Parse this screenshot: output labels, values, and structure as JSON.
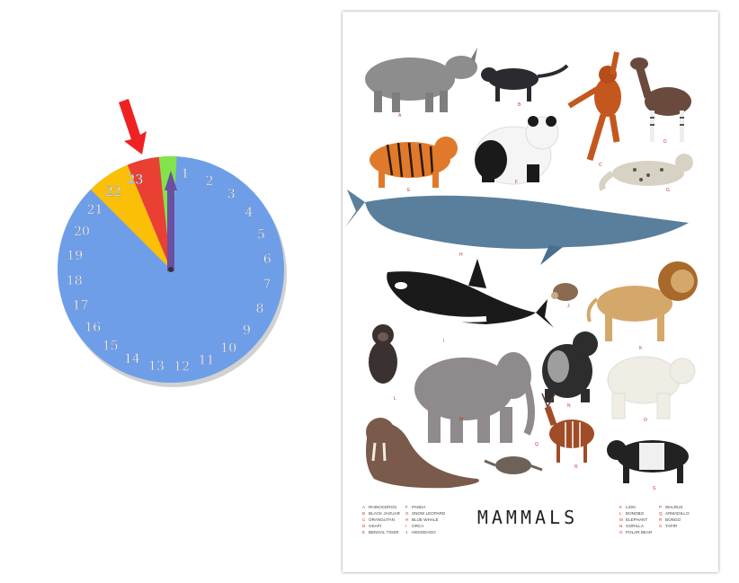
{
  "clock": {
    "hours": [
      "1",
      "2",
      "3",
      "4",
      "5",
      "6",
      "7",
      "8",
      "9",
      "10",
      "11",
      "12",
      "13",
      "14",
      "15",
      "16",
      "17",
      "18",
      "19",
      "20",
      "21",
      "22",
      "23"
    ],
    "colors": {
      "face": "#6e9ee8",
      "wedge_yellow": "#fbbf08",
      "wedge_red": "#ea4033",
      "wedge_green": "#83e34a",
      "hand": "#6b4fa3",
      "arrow": "#ee2222"
    },
    "arrow_icon": "red-arrow-icon"
  },
  "poster": {
    "title": "MAMMALS",
    "legend": [
      {
        "letter": "A",
        "name": "RHINOCEROS"
      },
      {
        "letter": "B",
        "name": "BLACK JAGUAR"
      },
      {
        "letter": "C",
        "name": "ORANGUTAN"
      },
      {
        "letter": "D",
        "name": "OKAPI"
      },
      {
        "letter": "E",
        "name": "BENGAL TIGER"
      },
      {
        "letter": "F",
        "name": "PANDA"
      },
      {
        "letter": "G",
        "name": "SNOW LEOPARD"
      },
      {
        "letter": "H",
        "name": "BLUE WHALE"
      },
      {
        "letter": "I",
        "name": "ORCA"
      },
      {
        "letter": "J",
        "name": "HEDGEHOG"
      },
      {
        "letter": "K",
        "name": "LION"
      },
      {
        "letter": "L",
        "name": "BONOBO"
      },
      {
        "letter": "M",
        "name": "ELEPHANT"
      },
      {
        "letter": "N",
        "name": "GORILLA"
      },
      {
        "letter": "O",
        "name": "POLAR BEAR"
      },
      {
        "letter": "P",
        "name": "WALRUS"
      },
      {
        "letter": "Q",
        "name": "ARMADILLO"
      },
      {
        "letter": "R",
        "name": "BONGO"
      },
      {
        "letter": "S",
        "name": "TAPIR"
      }
    ],
    "animal_labels": [
      "A",
      "B",
      "C",
      "D",
      "E",
      "F",
      "G",
      "H",
      "I",
      "J",
      "K",
      "L",
      "M",
      "N",
      "O",
      "P",
      "Q",
      "R",
      "S"
    ]
  }
}
